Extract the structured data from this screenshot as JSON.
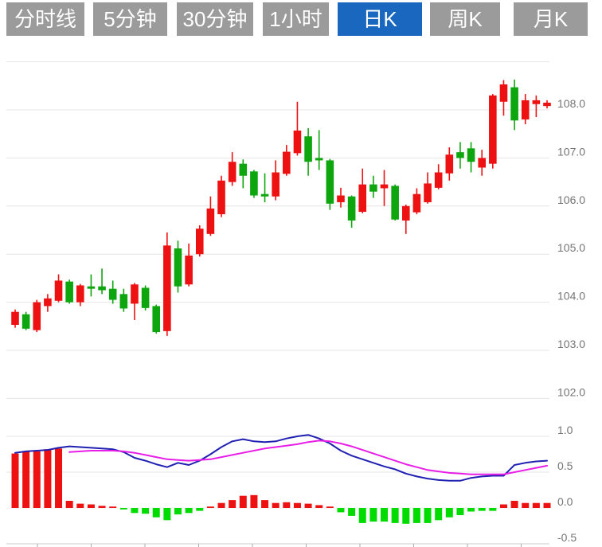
{
  "header": {
    "tabs": [
      {
        "label": "分时线",
        "active": false
      },
      {
        "label": "5分钟",
        "active": false
      },
      {
        "label": "30分钟",
        "active": false
      },
      {
        "label": "1小时",
        "active": false
      },
      {
        "label": "日K",
        "active": true
      },
      {
        "label": "周K",
        "active": false
      },
      {
        "label": "月K",
        "active": false
      }
    ]
  },
  "colors": {
    "candle_up": "#0EA60E",
    "candle_down": "#EE1111",
    "macd_bar_positive": "#EE1111",
    "macd_bar_negative": "#00DC00",
    "dif_line": "#2020B2",
    "dea_line": "#E81EE8",
    "tab_bg": "#9B9B9B",
    "tab_active_bg": "#1A67C0",
    "tab_text": "#FFFFFF",
    "grid_line": "#E4E4E4",
    "zero_line": "#F0F0F0",
    "axis_line": "#CCCCCC",
    "axis_tick": "#AAAAAA",
    "axis_text": "#757575",
    "background": "#FFFFFF"
  },
  "chart_data": [
    {
      "type": "candlestick",
      "panel": "price",
      "title": "",
      "grid": true,
      "legend_position": "none",
      "y_axis": {
        "range": [
          101.9,
          109.2
        ],
        "ticks": [
          109.0,
          108.0,
          107.0,
          106.0,
          105.0,
          104.0,
          103.0,
          102.0
        ],
        "tick_labels": [
          "",
          "108.0",
          "107.0",
          "106.0",
          "105.0",
          "104.0",
          "103.0",
          "102.0"
        ]
      },
      "candles_format": [
        "open",
        "high",
        "low",
        "close"
      ],
      "candles": [
        [
          103.8,
          103.85,
          103.47,
          103.53
        ],
        [
          103.45,
          103.8,
          103.42,
          103.75
        ],
        [
          104.0,
          104.05,
          103.38,
          103.42
        ],
        [
          104.08,
          104.17,
          103.8,
          103.92
        ],
        [
          104.45,
          104.58,
          104.0,
          104.03
        ],
        [
          104.0,
          104.47,
          103.97,
          104.43
        ],
        [
          104.35,
          104.38,
          103.92,
          104.0
        ],
        [
          104.28,
          104.58,
          104.12,
          104.33
        ],
        [
          104.25,
          104.7,
          104.17,
          104.33
        ],
        [
          104.05,
          104.45,
          103.97,
          104.28
        ],
        [
          103.87,
          104.28,
          103.8,
          104.17
        ],
        [
          104.37,
          104.4,
          103.63,
          103.97
        ],
        [
          103.88,
          104.35,
          103.83,
          104.3
        ],
        [
          103.38,
          103.95,
          103.35,
          103.92
        ],
        [
          105.18,
          105.45,
          103.3,
          103.4
        ],
        [
          104.33,
          105.28,
          104.2,
          105.12
        ],
        [
          104.97,
          105.22,
          104.33,
          104.37
        ],
        [
          105.53,
          105.6,
          104.95,
          105.0
        ],
        [
          105.95,
          106.2,
          105.38,
          105.42
        ],
        [
          106.53,
          106.63,
          105.77,
          105.83
        ],
        [
          106.92,
          107.12,
          106.42,
          106.5
        ],
        [
          106.63,
          106.97,
          106.37,
          106.88
        ],
        [
          106.22,
          106.75,
          106.17,
          106.72
        ],
        [
          106.2,
          106.68,
          106.08,
          106.25
        ],
        [
          106.7,
          106.95,
          106.12,
          106.2
        ],
        [
          107.13,
          107.27,
          106.63,
          106.67
        ],
        [
          107.57,
          108.17,
          107.05,
          107.1
        ],
        [
          106.92,
          107.62,
          106.63,
          107.45
        ],
        [
          106.95,
          107.58,
          106.75,
          107.0
        ],
        [
          106.05,
          106.98,
          105.92,
          106.95
        ],
        [
          106.22,
          106.38,
          105.97,
          106.08
        ],
        [
          105.7,
          106.22,
          105.55,
          106.2
        ],
        [
          106.45,
          106.78,
          105.85,
          105.88
        ],
        [
          106.3,
          106.63,
          106.17,
          106.45
        ],
        [
          106.45,
          106.75,
          106.0,
          106.37
        ],
        [
          105.72,
          106.45,
          105.7,
          106.42
        ],
        [
          106.0,
          106.03,
          105.42,
          105.7
        ],
        [
          106.25,
          106.37,
          105.83,
          105.87
        ],
        [
          106.47,
          106.7,
          106.05,
          106.08
        ],
        [
          106.7,
          106.87,
          106.35,
          106.38
        ],
        [
          107.07,
          107.22,
          106.53,
          106.68
        ],
        [
          107.0,
          107.33,
          106.78,
          107.12
        ],
        [
          106.92,
          107.33,
          106.7,
          107.2
        ],
        [
          107.0,
          107.17,
          106.63,
          106.8
        ],
        [
          108.3,
          108.33,
          106.78,
          106.88
        ],
        [
          108.53,
          108.62,
          107.88,
          108.17
        ],
        [
          107.78,
          108.63,
          107.58,
          108.47
        ],
        [
          108.2,
          108.33,
          107.7,
          107.8
        ],
        [
          108.2,
          108.3,
          107.85,
          108.12
        ],
        [
          108.15,
          108.2,
          108.03,
          108.08
        ]
      ]
    },
    {
      "type": "bar",
      "panel": "macd",
      "title": "",
      "grid": true,
      "legend_position": "none",
      "y_axis": {
        "range": [
          -0.5,
          1.0
        ],
        "ticks": [
          1.0,
          0.5,
          0.0,
          -0.5
        ],
        "tick_labels": [
          "1.0",
          "0.5",
          "0.0",
          "-0.5"
        ]
      },
      "series": [
        {
          "name": "macd-histogram",
          "type": "bar",
          "values": [
            0.76,
            0.79,
            0.79,
            0.82,
            0.83,
            0.1,
            0.06,
            0.05,
            0.03,
            0.01,
            -0.02,
            -0.07,
            -0.08,
            -0.13,
            -0.17,
            -0.09,
            -0.07,
            -0.04,
            0.02,
            0.07,
            0.11,
            0.17,
            0.18,
            0.11,
            0.07,
            0.08,
            0.07,
            0.06,
            0.04,
            0.01,
            -0.06,
            -0.11,
            -0.21,
            -0.19,
            -0.19,
            -0.21,
            -0.22,
            -0.21,
            -0.21,
            -0.17,
            -0.13,
            -0.1,
            -0.05,
            -0.04,
            -0.04,
            0.05,
            0.1,
            0.07,
            0.07,
            0.07
          ]
        },
        {
          "name": "dif",
          "type": "line",
          "color_key": "dif_line",
          "values": [
            0.77,
            0.79,
            0.8,
            0.81,
            0.84,
            0.86,
            0.85,
            0.84,
            0.83,
            0.82,
            0.78,
            0.7,
            0.66,
            0.61,
            0.57,
            0.63,
            0.6,
            0.66,
            0.75,
            0.85,
            0.93,
            0.96,
            0.93,
            0.92,
            0.93,
            0.97,
            1.0,
            1.02,
            0.97,
            0.9,
            0.8,
            0.73,
            0.68,
            0.63,
            0.58,
            0.54,
            0.48,
            0.44,
            0.41,
            0.39,
            0.38,
            0.38,
            0.42,
            0.44,
            0.45,
            0.45,
            0.6,
            0.63,
            0.65,
            0.66
          ]
        },
        {
          "name": "dea",
          "type": "line",
          "color_key": "dea_line",
          "values": [
            null,
            null,
            null,
            null,
            null,
            0.78,
            0.79,
            0.8,
            0.8,
            0.8,
            0.79,
            0.77,
            0.74,
            0.71,
            0.68,
            0.67,
            0.66,
            0.67,
            0.68,
            0.71,
            0.74,
            0.77,
            0.8,
            0.83,
            0.85,
            0.87,
            0.89,
            0.92,
            0.94,
            0.93,
            0.9,
            0.86,
            0.81,
            0.76,
            0.71,
            0.66,
            0.61,
            0.57,
            0.53,
            0.51,
            0.49,
            0.48,
            0.47,
            0.47,
            0.47,
            0.47,
            0.5,
            0.53,
            0.56,
            0.59
          ]
        }
      ]
    }
  ]
}
